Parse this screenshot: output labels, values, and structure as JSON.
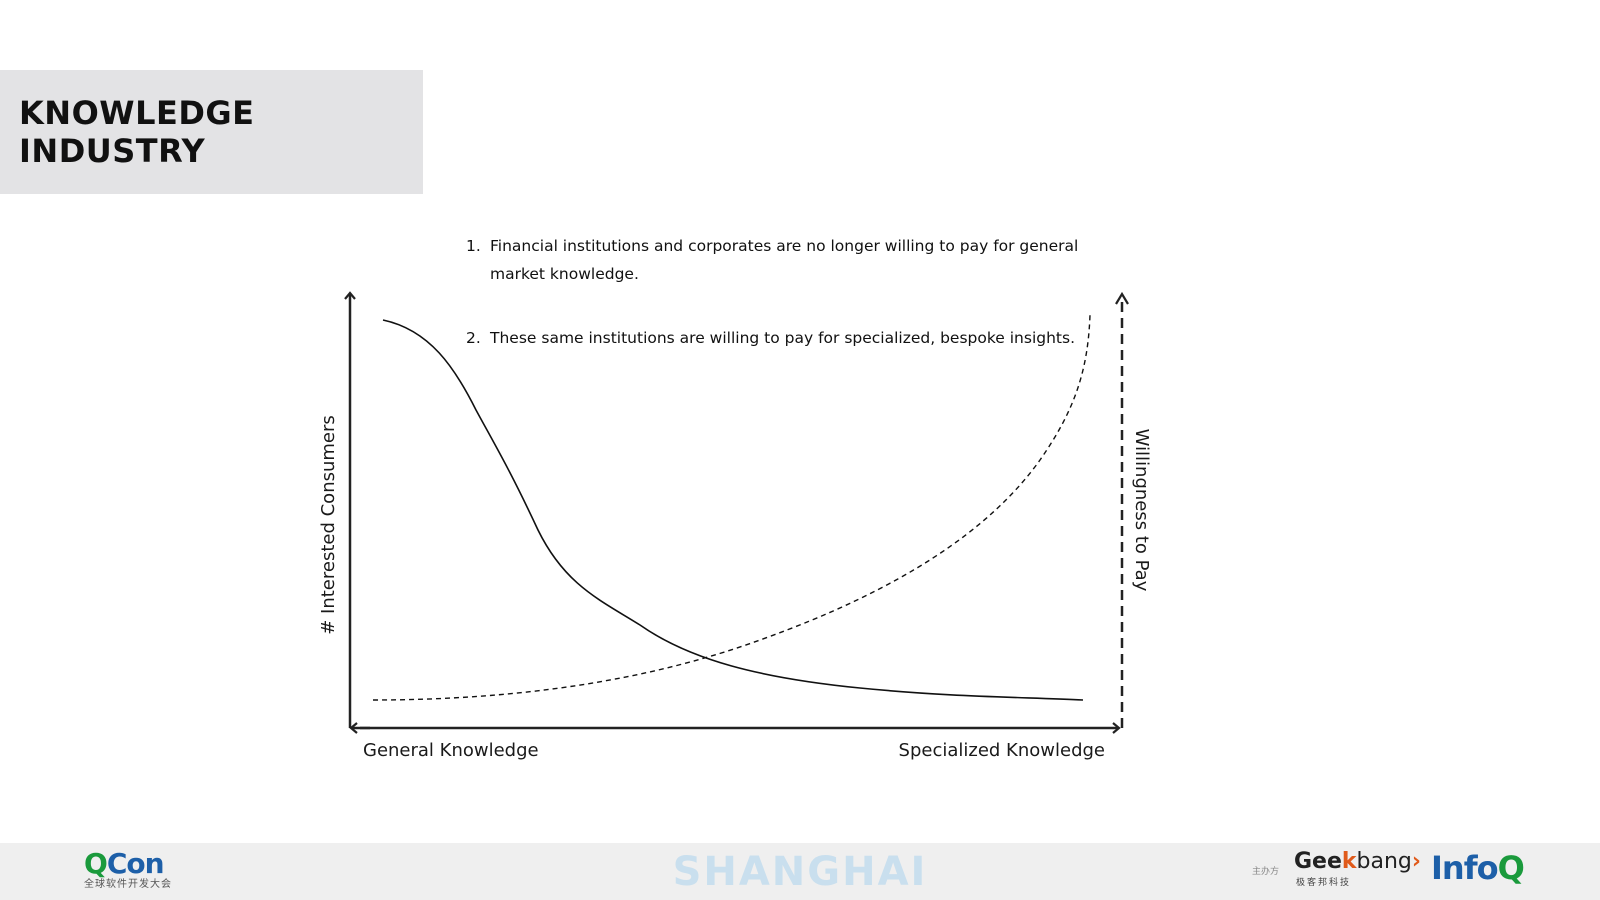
{
  "slide": {
    "title": "KNOWLEDGE INDUSTRY",
    "notes": [
      {
        "num": "1.",
        "text": "Financial institutions and corporates are no longer willing to pay for general market knowledge."
      },
      {
        "num": "2.",
        "text": "These same institutions are willing to pay for specialized, bespoke insights."
      }
    ]
  },
  "diagram": {
    "left_axis_label": "# Interested Consumers",
    "right_axis_label": "Willingness to Pay",
    "x_left_label": "General Knowledge",
    "x_right_label": "Specialized Knowledge",
    "curves": [
      {
        "name": "interested-consumers",
        "style": "solid",
        "color": "#111111",
        "trend": "decreasing"
      },
      {
        "name": "willingness-to-pay",
        "style": "dashed",
        "color": "#111111",
        "trend": "increasing"
      }
    ]
  },
  "footer": {
    "qcon_logo_main_q": "Q",
    "qcon_logo_main_rest": "Con",
    "qcon_logo_sub": "全球软件开发大会",
    "city": "SHANGHAI",
    "sponsor_label": "主办方",
    "geekbang_geek": "Gee",
    "geekbang_k": "k",
    "geekbang_bang": "bang",
    "geekbang_chevron": "›",
    "geekbang_sub": "极客邦科技",
    "infoq_info": "Info",
    "infoq_q": "Q"
  },
  "colors": {
    "title_box_bg": "#e3e3e5",
    "footer_bg": "#efefef",
    "city_text": "#c9dfee",
    "qcon_green": "#1a9a3c",
    "qcon_blue": "#1d5fa8",
    "geekbang_orange": "#e05a1a"
  }
}
